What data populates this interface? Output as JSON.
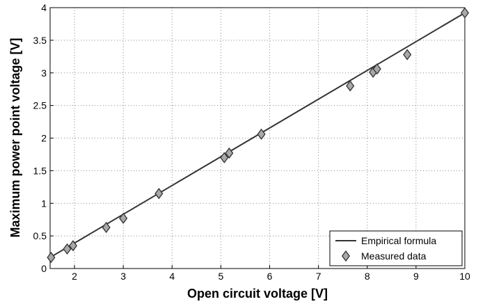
{
  "chart_data": {
    "type": "line",
    "xlabel": "Open circuit voltage [V]",
    "ylabel": "Maximum power point voltage [V]",
    "xlim": [
      1.5,
      10
    ],
    "xticks": [
      2,
      3,
      4,
      5,
      6,
      7,
      8,
      9,
      10
    ],
    "ylim": [
      0,
      4
    ],
    "yticks": [
      0,
      0.5,
      1,
      1.5,
      2,
      2.5,
      3,
      3.5,
      4
    ],
    "grid": true,
    "legend": "lower right",
    "series": [
      {
        "name": "Empirical formula",
        "mode": "line",
        "color": "#333333",
        "x": [
          1.5,
          10
        ],
        "values": [
          0.17,
          3.92
        ]
      },
      {
        "name": "Measured data",
        "mode": "marker",
        "color": "#a8a8a8",
        "x": [
          1.52,
          1.85,
          1.97,
          2.65,
          3.0,
          3.73,
          5.07,
          5.17,
          5.83,
          7.65,
          8.12,
          8.2,
          8.82,
          10.0
        ],
        "values": [
          0.17,
          0.3,
          0.35,
          0.63,
          0.77,
          1.15,
          1.7,
          1.77,
          2.06,
          2.8,
          3.01,
          3.06,
          3.28,
          3.92
        ]
      }
    ]
  }
}
